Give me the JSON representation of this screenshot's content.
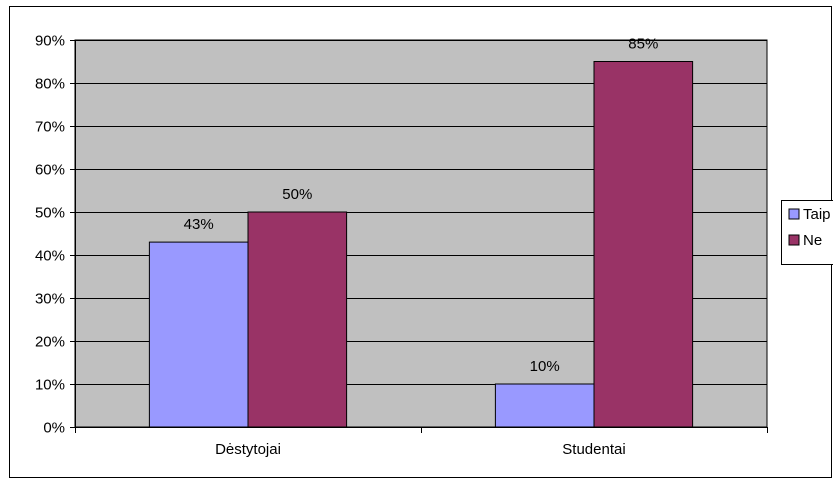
{
  "chart_data": {
    "type": "bar",
    "title": "",
    "xlabel": "",
    "ylabel": "",
    "categories": [
      "Dėstytojai",
      "Studentai"
    ],
    "series": [
      {
        "name": "Taip",
        "values": [
          43,
          10
        ],
        "labels": [
          "43%",
          "10%"
        ]
      },
      {
        "name": "Ne",
        "values": [
          50,
          85
        ],
        "labels": [
          "50%",
          "85%"
        ]
      }
    ],
    "ylim": [
      0,
      90
    ],
    "yticks": [
      0,
      10,
      20,
      30,
      40,
      50,
      60,
      70,
      80,
      90
    ],
    "ytick_labels": [
      "0%",
      "10%",
      "20%",
      "30%",
      "40%",
      "50%",
      "60%",
      "70%",
      "80%",
      "90%"
    ],
    "grid": true,
    "legend_position": "right"
  },
  "colors": {
    "plot_background": "#c0c0c0",
    "series": [
      "#9999ff",
      "#993366"
    ],
    "gridline": "#000000",
    "border": "#000000"
  }
}
